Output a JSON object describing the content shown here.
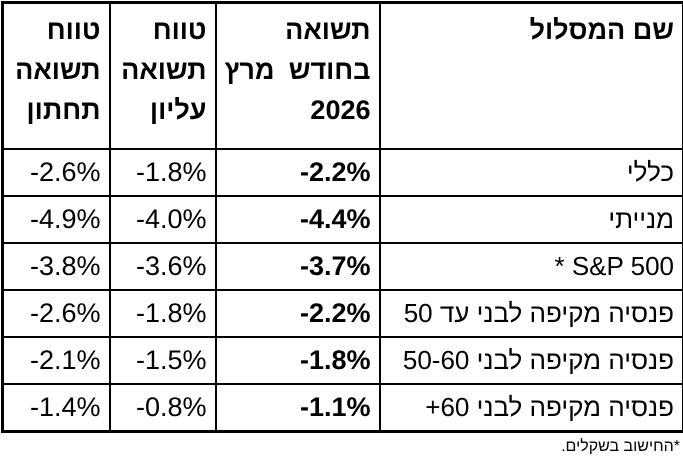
{
  "chart_data": {
    "type": "table",
    "title": "",
    "columns": [
      "שם המסלול",
      "תשואה בחודש מרץ 2026",
      "טווח תשואה עליון",
      "טווח תשואה תחתון"
    ],
    "rows": [
      [
        "כללי",
        "-2.2%",
        "-1.8%",
        "-2.6%"
      ],
      [
        "מנייתי",
        "-4.4%",
        "-4.0%",
        "-4.9%"
      ],
      [
        "S&P 500 *",
        "-3.7%",
        "-3.6%",
        "-3.8%"
      ],
      [
        "פנסיה מקיפה לבני עד 50",
        "-2.2%",
        "-1.8%",
        "-2.6%"
      ],
      [
        "פנסיה מקיפה לבני 50-60",
        "-1.8%",
        "-1.5%",
        "-2.1%"
      ],
      [
        "פנסיה מקיפה לבני 60+",
        "-1.1%",
        "-0.8%",
        "-1.4%"
      ]
    ],
    "footnote": "*החישוב בשקלים.",
    "layout_hints": {
      "direction": "rtl",
      "grid": "on",
      "bold_column": "תשואה בחודש מרץ 2026",
      "header_bold": true
    }
  },
  "header": {
    "name": "שם המסלול",
    "march": {
      "line1": "תשואה",
      "line2_right": "בחודש",
      "line2_left": "מרץ",
      "line3": "2026"
    },
    "upper": {
      "line1": "טווח",
      "line2": "תשואה",
      "line3": "עליון"
    },
    "lower": {
      "line1": "טווח",
      "line2": "תשואה",
      "line3": "תחתון"
    }
  },
  "footnote": {
    "text": "*החישוב בשקלים."
  },
  "colors": {
    "text": "#000000",
    "border": "#000000",
    "background": "#ffffff"
  }
}
